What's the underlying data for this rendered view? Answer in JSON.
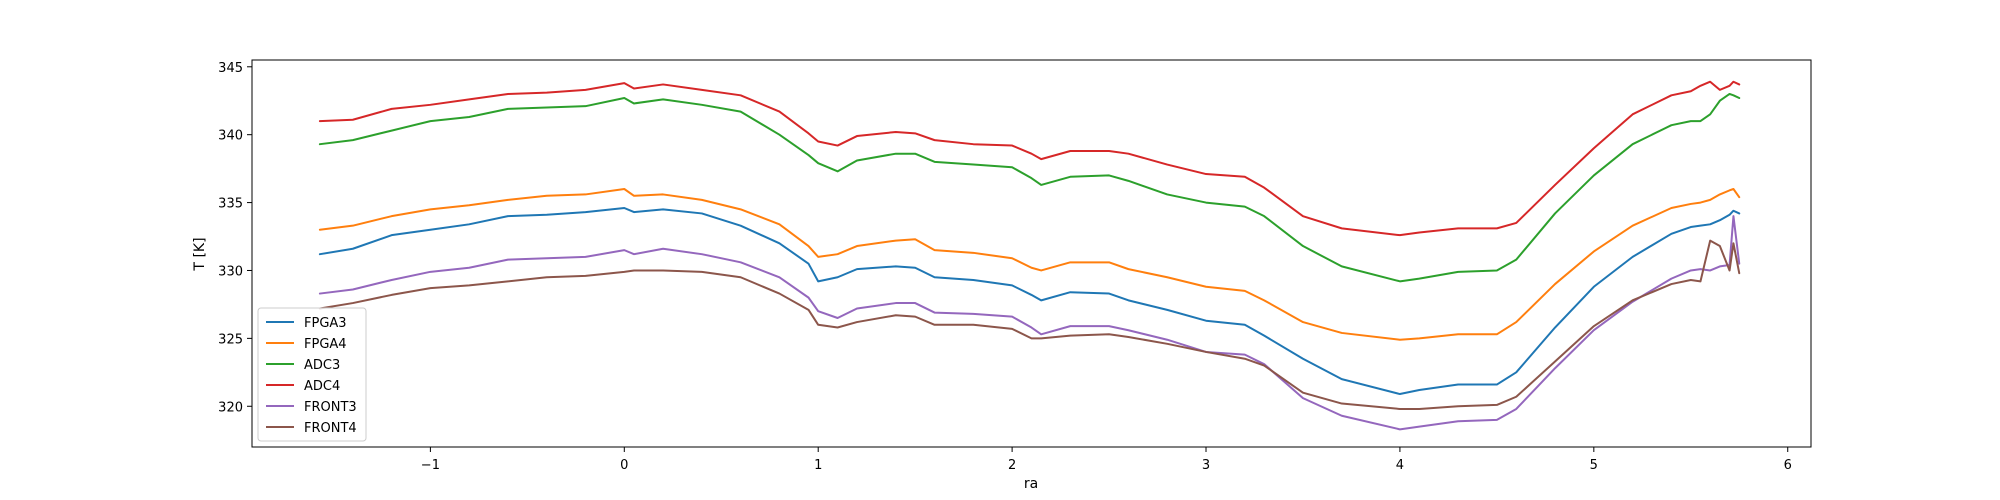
{
  "chart_data": {
    "type": "line",
    "xlabel": "ra",
    "ylabel": "T [K]",
    "xlim": [
      -1.92,
      6.12
    ],
    "ylim": [
      317.0,
      345.5
    ],
    "xticks": [
      -1,
      0,
      1,
      2,
      3,
      4,
      5,
      6
    ],
    "xtick_labels": [
      "−1",
      "0",
      "1",
      "2",
      "3",
      "4",
      "5",
      "6"
    ],
    "yticks": [
      320,
      325,
      330,
      335,
      340,
      345
    ],
    "ytick_labels": [
      "320",
      "325",
      "330",
      "335",
      "340",
      "345"
    ],
    "grid": false,
    "legend_position": "lower-left",
    "series": [
      {
        "name": "FPGA3",
        "color": "#1f77b4",
        "x": [
          -1.57,
          -1.4,
          -1.2,
          -1.0,
          -0.8,
          -0.6,
          -0.4,
          -0.2,
          0.0,
          0.05,
          0.2,
          0.4,
          0.6,
          0.8,
          0.95,
          1.0,
          1.1,
          1.2,
          1.4,
          1.5,
          1.6,
          1.8,
          2.0,
          2.1,
          2.15,
          2.3,
          2.5,
          2.6,
          2.8,
          3.0,
          3.2,
          3.3,
          3.5,
          3.7,
          4.0,
          4.1,
          4.3,
          4.5,
          4.6,
          4.8,
          5.0,
          5.2,
          5.4,
          5.5,
          5.55,
          5.6,
          5.65,
          5.7,
          5.72,
          5.75
        ],
        "y": [
          331.2,
          331.6,
          332.6,
          333.0,
          333.4,
          334.0,
          334.1,
          334.3,
          334.6,
          334.3,
          334.5,
          334.2,
          333.3,
          332.0,
          330.5,
          329.2,
          329.5,
          330.1,
          330.3,
          330.2,
          329.5,
          329.3,
          328.9,
          328.2,
          327.8,
          328.4,
          328.3,
          327.8,
          327.1,
          326.3,
          326.0,
          325.2,
          323.5,
          322.0,
          320.9,
          321.2,
          321.6,
          321.6,
          322.5,
          325.8,
          328.8,
          331.0,
          332.7,
          333.2,
          333.3,
          333.4,
          333.7,
          334.1,
          334.4,
          334.2
        ]
      },
      {
        "name": "FPGA4",
        "color": "#ff7f0e",
        "x": [
          -1.57,
          -1.4,
          -1.2,
          -1.0,
          -0.8,
          -0.6,
          -0.4,
          -0.2,
          0.0,
          0.05,
          0.2,
          0.4,
          0.6,
          0.8,
          0.95,
          1.0,
          1.1,
          1.2,
          1.4,
          1.5,
          1.6,
          1.8,
          2.0,
          2.1,
          2.15,
          2.3,
          2.5,
          2.6,
          2.8,
          3.0,
          3.2,
          3.3,
          3.5,
          3.7,
          4.0,
          4.1,
          4.3,
          4.5,
          4.6,
          4.8,
          5.0,
          5.2,
          5.4,
          5.5,
          5.55,
          5.6,
          5.65,
          5.7,
          5.72,
          5.75
        ],
        "y": [
          333.0,
          333.3,
          334.0,
          334.5,
          334.8,
          335.2,
          335.5,
          335.6,
          336.0,
          335.5,
          335.6,
          335.2,
          334.5,
          333.4,
          331.8,
          331.0,
          331.2,
          331.8,
          332.2,
          332.3,
          331.5,
          331.3,
          330.9,
          330.2,
          330.0,
          330.6,
          330.6,
          330.1,
          329.5,
          328.8,
          328.5,
          327.8,
          326.2,
          325.4,
          324.9,
          325.0,
          325.3,
          325.3,
          326.2,
          329.0,
          331.4,
          333.3,
          334.6,
          334.9,
          335.0,
          335.2,
          335.6,
          335.9,
          336.0,
          335.4
        ]
      },
      {
        "name": "ADC3",
        "color": "#2ca02c",
        "x": [
          -1.57,
          -1.4,
          -1.2,
          -1.0,
          -0.8,
          -0.6,
          -0.4,
          -0.2,
          0.0,
          0.05,
          0.2,
          0.4,
          0.6,
          0.8,
          0.95,
          1.0,
          1.1,
          1.2,
          1.4,
          1.5,
          1.6,
          1.8,
          2.0,
          2.1,
          2.15,
          2.3,
          2.5,
          2.6,
          2.8,
          3.0,
          3.2,
          3.3,
          3.5,
          3.7,
          4.0,
          4.1,
          4.3,
          4.5,
          4.6,
          4.8,
          5.0,
          5.2,
          5.4,
          5.5,
          5.55,
          5.6,
          5.65,
          5.7,
          5.72,
          5.75
        ],
        "y": [
          339.3,
          339.6,
          340.3,
          341.0,
          341.3,
          341.9,
          342.0,
          342.1,
          342.7,
          342.3,
          342.6,
          342.2,
          341.7,
          340.0,
          338.5,
          337.9,
          337.3,
          338.1,
          338.6,
          338.6,
          338.0,
          337.8,
          337.6,
          336.8,
          336.3,
          336.9,
          337.0,
          336.6,
          335.6,
          335.0,
          334.7,
          334.0,
          331.8,
          330.3,
          329.2,
          329.4,
          329.9,
          330.0,
          330.8,
          334.2,
          337.0,
          339.3,
          340.7,
          341.0,
          341.0,
          341.5,
          342.5,
          343.0,
          342.9,
          342.7
        ]
      },
      {
        "name": "ADC4",
        "color": "#d62728",
        "x": [
          -1.57,
          -1.4,
          -1.2,
          -1.0,
          -0.8,
          -0.6,
          -0.4,
          -0.2,
          0.0,
          0.05,
          0.2,
          0.4,
          0.6,
          0.8,
          0.95,
          1.0,
          1.1,
          1.2,
          1.4,
          1.5,
          1.6,
          1.8,
          2.0,
          2.1,
          2.15,
          2.3,
          2.5,
          2.6,
          2.8,
          3.0,
          3.2,
          3.3,
          3.5,
          3.7,
          4.0,
          4.1,
          4.3,
          4.5,
          4.6,
          4.8,
          5.0,
          5.2,
          5.4,
          5.5,
          5.55,
          5.6,
          5.65,
          5.7,
          5.72,
          5.75
        ],
        "y": [
          341.0,
          341.1,
          341.9,
          342.2,
          342.6,
          343.0,
          343.1,
          343.3,
          343.8,
          343.4,
          343.7,
          343.3,
          342.9,
          341.7,
          340.1,
          339.5,
          339.2,
          339.9,
          340.2,
          340.1,
          339.6,
          339.3,
          339.2,
          338.6,
          338.2,
          338.8,
          338.8,
          338.6,
          337.8,
          337.1,
          336.9,
          336.1,
          334.0,
          333.1,
          332.6,
          332.8,
          333.1,
          333.1,
          333.5,
          336.3,
          339.0,
          341.5,
          342.9,
          343.2,
          343.6,
          343.9,
          343.3,
          343.6,
          343.9,
          343.7
        ]
      },
      {
        "name": "FRONT3",
        "color": "#9467bd",
        "x": [
          -1.57,
          -1.4,
          -1.2,
          -1.0,
          -0.8,
          -0.6,
          -0.4,
          -0.2,
          0.0,
          0.05,
          0.2,
          0.4,
          0.6,
          0.8,
          0.95,
          1.0,
          1.1,
          1.2,
          1.4,
          1.5,
          1.6,
          1.8,
          2.0,
          2.1,
          2.15,
          2.3,
          2.5,
          2.6,
          2.8,
          3.0,
          3.2,
          3.3,
          3.5,
          3.7,
          4.0,
          4.1,
          4.3,
          4.5,
          4.6,
          4.8,
          5.0,
          5.2,
          5.4,
          5.5,
          5.55,
          5.6,
          5.65,
          5.7,
          5.72,
          5.75
        ],
        "y": [
          328.3,
          328.6,
          329.3,
          329.9,
          330.2,
          330.8,
          330.9,
          331.0,
          331.5,
          331.2,
          331.6,
          331.2,
          330.6,
          329.5,
          328.0,
          327.0,
          326.5,
          327.2,
          327.6,
          327.6,
          326.9,
          326.8,
          326.6,
          325.8,
          325.3,
          325.9,
          325.9,
          325.6,
          324.9,
          324.0,
          323.8,
          323.1,
          320.6,
          319.3,
          318.3,
          318.5,
          318.9,
          319.0,
          319.8,
          322.8,
          325.6,
          327.7,
          329.4,
          330.0,
          330.1,
          330.0,
          330.3,
          330.4,
          334.0,
          330.5
        ]
      },
      {
        "name": "FRONT4",
        "color": "#8c564b",
        "x": [
          -1.57,
          -1.4,
          -1.2,
          -1.0,
          -0.8,
          -0.6,
          -0.4,
          -0.2,
          0.0,
          0.05,
          0.2,
          0.4,
          0.6,
          0.8,
          0.95,
          1.0,
          1.1,
          1.2,
          1.4,
          1.5,
          1.6,
          1.8,
          2.0,
          2.1,
          2.15,
          2.3,
          2.5,
          2.6,
          2.8,
          3.0,
          3.2,
          3.3,
          3.5,
          3.7,
          4.0,
          4.1,
          4.3,
          4.5,
          4.6,
          4.8,
          5.0,
          5.2,
          5.4,
          5.5,
          5.55,
          5.6,
          5.65,
          5.7,
          5.72,
          5.75
        ],
        "y": [
          327.2,
          327.6,
          328.2,
          328.7,
          328.9,
          329.2,
          329.5,
          329.6,
          329.9,
          330.0,
          330.0,
          329.9,
          329.5,
          328.3,
          327.1,
          326.0,
          325.8,
          326.2,
          326.7,
          326.6,
          326.0,
          326.0,
          325.7,
          325.0,
          325.0,
          325.2,
          325.3,
          325.1,
          324.6,
          324.0,
          323.5,
          323.0,
          321.0,
          320.2,
          319.8,
          319.8,
          320.0,
          320.1,
          320.7,
          323.3,
          325.9,
          327.8,
          329.0,
          329.3,
          329.2,
          332.2,
          331.8,
          330.0,
          332.0,
          329.8
        ]
      }
    ]
  }
}
